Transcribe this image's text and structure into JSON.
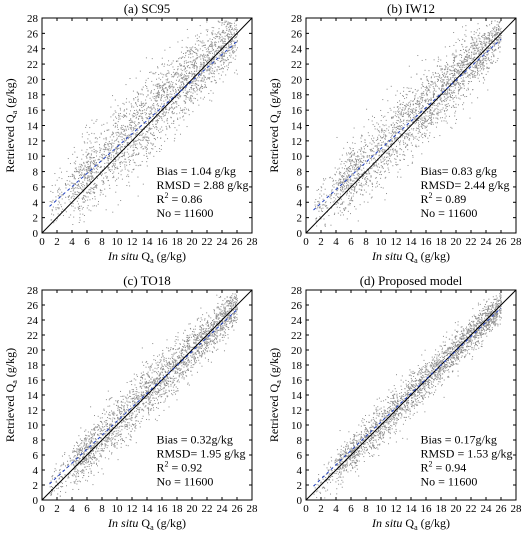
{
  "figure": {
    "x_label_italic": "In situ",
    "x_label_rest": "Q",
    "x_label_sub": "a",
    "x_label_unit": "(g/kg)",
    "y_label_main": "Retrieved Q",
    "y_label_sub": "a",
    "y_label_unit": "(g/kg)"
  },
  "chart_data": [
    {
      "type": "scatter",
      "title": "(a) SC95",
      "xlim": [
        0,
        28
      ],
      "ylim": [
        0,
        28
      ],
      "x_ticks": [
        0,
        2,
        4,
        6,
        8,
        10,
        12,
        14,
        16,
        18,
        20,
        22,
        24,
        26,
        28
      ],
      "y_ticks": [
        0,
        2,
        4,
        6,
        8,
        10,
        12,
        14,
        16,
        18,
        20,
        22,
        24,
        26,
        28
      ],
      "reference_line": "1:1",
      "fit_line": {
        "slope": 0.86,
        "intercept": 2.6
      },
      "stats": {
        "bias": "Bias = 1.04 g/kg",
        "rmsd": "RMSD = 2.88 g/kg",
        "r2_lead": "R",
        "r2_sup": "2",
        "r2_value": " = 0.86",
        "n": "No = 11600"
      },
      "scatter_params": {
        "n_points": 2500,
        "spread": 2.88,
        "bias": 1.04
      },
      "colors": {
        "points": "#8c8c8c",
        "line": "#000000",
        "fit": "#1f3fbf"
      }
    },
    {
      "type": "scatter",
      "title": "(b) IW12",
      "xlim": [
        0,
        28
      ],
      "ylim": [
        0,
        28
      ],
      "x_ticks": [
        0,
        2,
        4,
        6,
        8,
        10,
        12,
        14,
        16,
        18,
        20,
        22,
        24,
        26,
        28
      ],
      "y_ticks": [
        0,
        2,
        4,
        6,
        8,
        10,
        12,
        14,
        16,
        18,
        20,
        22,
        24,
        26,
        28
      ],
      "reference_line": "1:1",
      "fit_line": {
        "slope": 0.89,
        "intercept": 2.1
      },
      "stats": {
        "bias": "Bias= 0.83 g/kg",
        "rmsd": "RMSD= 2.44 g/kg",
        "r2_lead": "R",
        "r2_sup": "2",
        "r2_value": " = 0.89",
        "n": "No = 11600"
      },
      "scatter_params": {
        "n_points": 2500,
        "spread": 2.44,
        "bias": 0.83
      },
      "colors": {
        "points": "#8c8c8c",
        "line": "#000000",
        "fit": "#1f3fbf"
      }
    },
    {
      "type": "scatter",
      "title": "(c) TO18",
      "xlim": [
        0,
        28
      ],
      "ylim": [
        0,
        28
      ],
      "x_ticks": [
        0,
        2,
        4,
        6,
        8,
        10,
        12,
        14,
        16,
        18,
        20,
        22,
        24,
        26,
        28
      ],
      "y_ticks": [
        0,
        2,
        4,
        6,
        8,
        10,
        12,
        14,
        16,
        18,
        20,
        22,
        24,
        26,
        28
      ],
      "reference_line": "1:1",
      "fit_line": {
        "slope": 0.93,
        "intercept": 1.2
      },
      "stats": {
        "bias": "Bias = 0.32g/kg",
        "rmsd": "RMSD= 1.95 g/kg",
        "r2_lead": "R",
        "r2_sup": "2",
        "r2_value": " = 0.92",
        "n": "No = 11600"
      },
      "scatter_params": {
        "n_points": 2500,
        "spread": 1.95,
        "bias": 0.32
      },
      "colors": {
        "points": "#8c8c8c",
        "line": "#000000",
        "fit": "#1f3fbf"
      }
    },
    {
      "type": "scatter",
      "title": "(d) Proposed model",
      "xlim": [
        0,
        28
      ],
      "ylim": [
        0,
        28
      ],
      "x_ticks": [
        0,
        2,
        4,
        6,
        8,
        10,
        12,
        14,
        16,
        18,
        20,
        22,
        24,
        26,
        28
      ],
      "y_ticks": [
        0,
        2,
        4,
        6,
        8,
        10,
        12,
        14,
        16,
        18,
        20,
        22,
        24,
        26,
        28
      ],
      "reference_line": "1:1",
      "fit_line": {
        "slope": 0.95,
        "intercept": 0.9
      },
      "stats": {
        "bias": "Bias = 0.17g/kg",
        "rmsd": "RMSD = 1.53 g/kg",
        "r2_lead": "R",
        "r2_sup": "2",
        "r2_value": " = 0.94",
        "n": "No = 11600"
      },
      "scatter_params": {
        "n_points": 2500,
        "spread": 1.53,
        "bias": 0.17
      },
      "colors": {
        "points": "#8c8c8c",
        "line": "#000000",
        "fit": "#1f3fbf"
      }
    }
  ]
}
